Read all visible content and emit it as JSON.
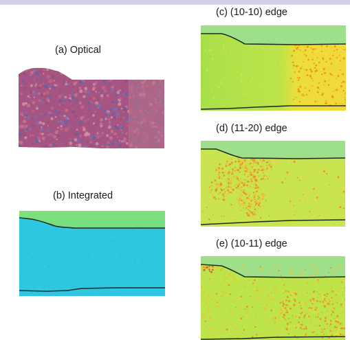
{
  "figure": {
    "panels": [
      {
        "id": "a",
        "label": "(a) Optical"
      },
      {
        "id": "b",
        "label": "(b) Integrated"
      },
      {
        "id": "c",
        "label": "(c) (10-10) edge"
      },
      {
        "id": "d",
        "label": "(d) (11-20) edge"
      },
      {
        "id": "e",
        "label": "(e) (10-11) edge"
      }
    ]
  },
  "colors": {
    "optical_base": "#b0577a",
    "optical_highlight": "#6c78b8",
    "integrated_fill": "#2fc6e0",
    "integrated_top": "#7fe07a",
    "edge_green": "#a8e04a",
    "edge_yellow": "#f2e03a",
    "edge_orange": "#f08a20",
    "boundary_line": "#1f2a1f"
  }
}
